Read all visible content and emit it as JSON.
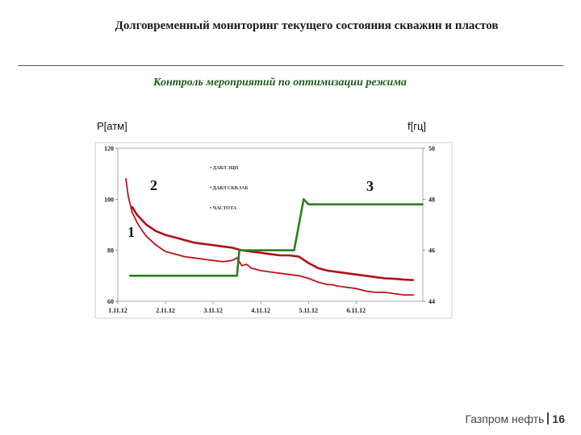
{
  "slide": {
    "title": "Долговременный мониторинг текущего состояния скважин и пластов",
    "subtitle": "Контроль мероприятий по оптимизации режима",
    "footer_company": "Газпром нефть",
    "page_number": "16"
  },
  "chart_data": {
    "type": "line",
    "ylabel_left": "P[атм]",
    "ylabel_right": "f[гц]",
    "x_ticks": [
      "1.11.12",
      "2.11.12",
      "3.11.12",
      "4.11.12",
      "5.11.12",
      "6.11.12"
    ],
    "xlim": [
      0,
      6.4
    ],
    "y_left_ticks": [
      "60",
      "80",
      "100",
      "120"
    ],
    "ylim_left": [
      60,
      120
    ],
    "y_right_ticks": [
      "44",
      "46",
      "48",
      "50"
    ],
    "ylim_right": [
      44,
      50
    ],
    "grid": false,
    "legend_position": "upper-center",
    "annotations": [
      "1",
      "2",
      "3"
    ],
    "series": [
      {
        "name": "• ДАВЛ ЭЦН",
        "color": "#c0141c",
        "axis": "left",
        "x": [
          0.17,
          0.22,
          0.3,
          0.4,
          0.5,
          0.6,
          0.8,
          1.0,
          1.2,
          1.4,
          1.6,
          1.8,
          2.0,
          2.2,
          2.4,
          2.5,
          2.55,
          2.6,
          2.7,
          2.8,
          2.9,
          3.0,
          3.2,
          3.4,
          3.6,
          3.8,
          4.0,
          4.2,
          4.3,
          4.4,
          4.5,
          4.6,
          4.8,
          5.0,
          5.2,
          5.4,
          5.6,
          5.8,
          6.0,
          6.2
        ],
        "y": [
          108,
          101,
          95,
          91,
          88,
          85.5,
          82,
          79.5,
          78.5,
          77.5,
          77,
          76.5,
          76,
          75.5,
          76,
          77,
          75.5,
          74,
          74.5,
          73,
          72.5,
          72,
          71.5,
          71,
          70.5,
          70,
          69,
          67.5,
          67,
          66.5,
          66.5,
          66,
          65.5,
          65,
          64,
          63.5,
          63.5,
          63,
          62.5,
          62.5
        ]
      },
      {
        "name": "• ДАВЛ СКВ.ЗАБ",
        "color": "#b01018",
        "axis": "left",
        "x": [
          0.3,
          0.4,
          0.5,
          0.6,
          0.8,
          1.0,
          1.2,
          1.4,
          1.6,
          1.8,
          2.0,
          2.2,
          2.4,
          2.6,
          2.8,
          3.0,
          3.2,
          3.4,
          3.6,
          3.8,
          4.0,
          4.2,
          4.4,
          4.6,
          4.8,
          5.0,
          5.2,
          5.4,
          5.6,
          5.8,
          6.0,
          6.2
        ],
        "y": [
          97,
          94,
          92,
          90,
          87.5,
          86,
          85,
          84,
          83,
          82.5,
          82,
          81.5,
          81,
          80,
          79.5,
          79,
          78.5,
          78,
          78,
          77.5,
          75,
          73,
          72,
          71.5,
          71,
          70.5,
          70,
          69.5,
          69,
          68.8,
          68.5,
          68.3
        ]
      },
      {
        "name": "• ЧАСТОТА",
        "color": "#2e7d22",
        "axis": "right",
        "x": [
          0.25,
          2.5,
          2.55,
          3.7,
          3.9,
          4.0,
          6.4
        ],
        "y": [
          45,
          45,
          46,
          46,
          48,
          47.8,
          47.8
        ]
      }
    ]
  }
}
